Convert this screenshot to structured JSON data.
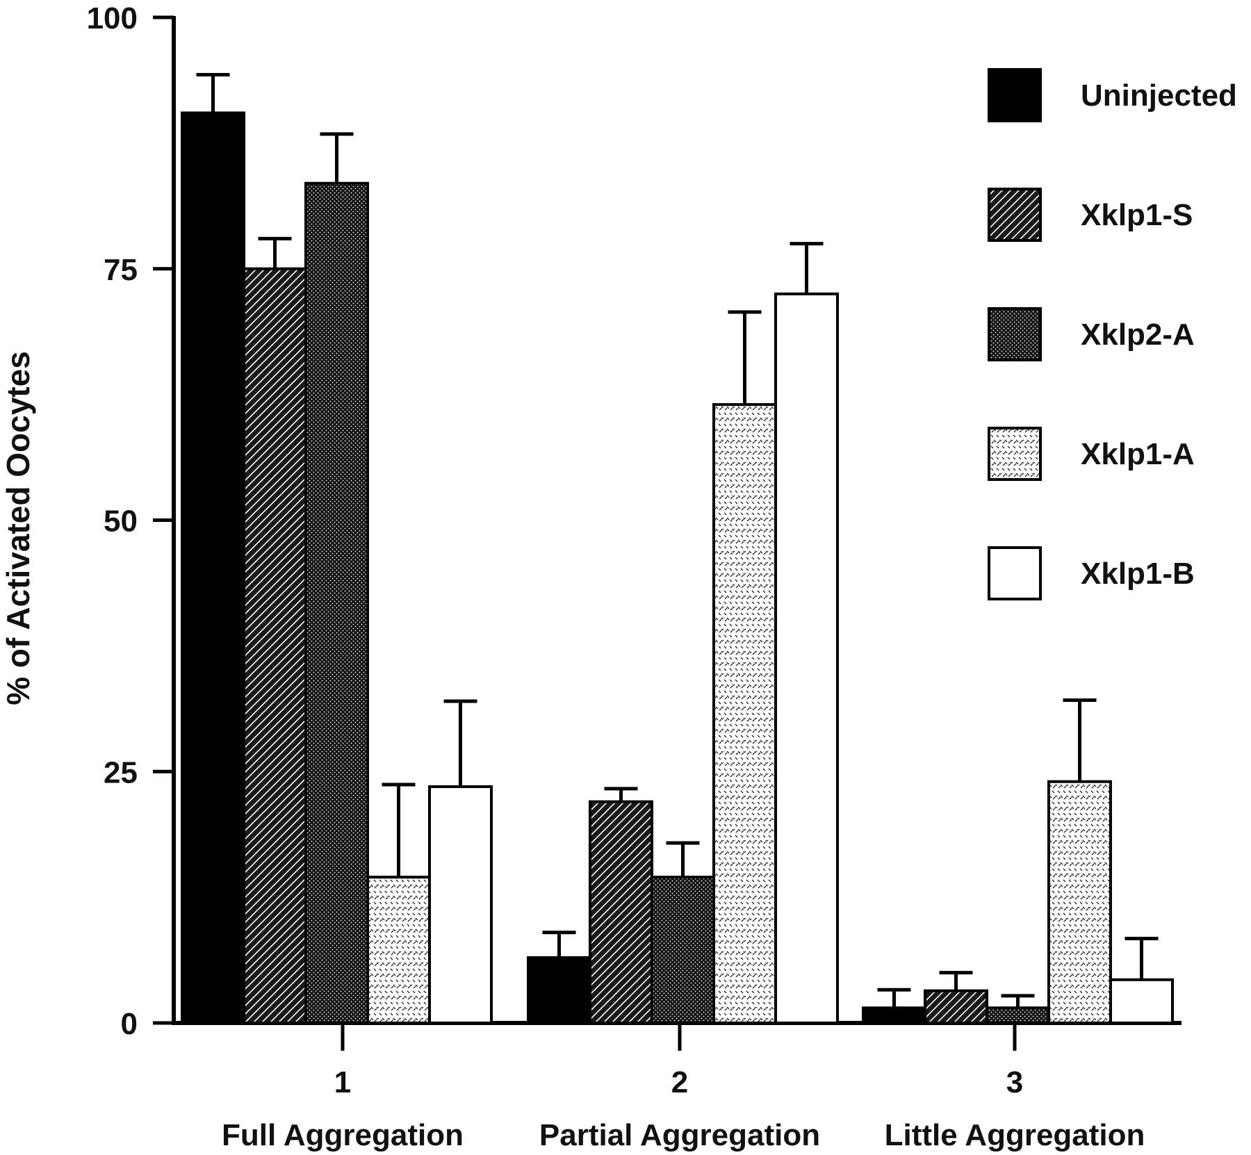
{
  "chart_data": {
    "type": "bar",
    "ylabel": "% of Activated Oocytes",
    "ylim": [
      0,
      100
    ],
    "yticks": [
      "0",
      "25",
      "50",
      "75",
      "100"
    ],
    "categories": [
      "1",
      "2",
      "3"
    ],
    "category_labels": [
      "Full Aggregation",
      "Partial Aggregation",
      "Little Aggregation"
    ],
    "legend_position": "top-right",
    "series": [
      {
        "name": "Uninjected",
        "pattern": "solid",
        "values": [
          90.5,
          6.5,
          1.5
        ],
        "errors": [
          3.8,
          2.5,
          1.8
        ]
      },
      {
        "name": "Xklp1-S",
        "pattern": "hatch",
        "values": [
          75.0,
          22.0,
          3.2
        ],
        "errors": [
          3.0,
          1.3,
          1.8
        ]
      },
      {
        "name": "Xklp2-A",
        "pattern": "dots",
        "values": [
          83.5,
          14.5,
          1.5
        ],
        "errors": [
          4.9,
          3.4,
          1.2
        ]
      },
      {
        "name": "Xklp1-A",
        "pattern": "dashes",
        "values": [
          14.5,
          61.5,
          24.0
        ],
        "errors": [
          9.2,
          9.2,
          8.1
        ]
      },
      {
        "name": "Xklp1-B",
        "pattern": "open",
        "values": [
          23.5,
          72.5,
          4.3
        ],
        "errors": [
          8.5,
          5.0,
          4.1
        ]
      }
    ]
  }
}
